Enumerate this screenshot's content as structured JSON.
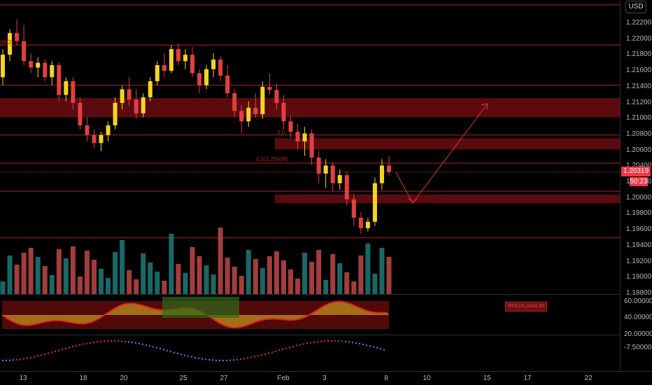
{
  "price_scale": {
    "currency": "USD",
    "ticks": [
      "1.22200",
      "1.22000",
      "1.21800",
      "1.21600",
      "1.21400",
      "1.21200",
      "1.21000",
      "1.20800",
      "1.20600",
      "1.20400",
      "1.20200",
      "1.20000",
      "1.19800",
      "1.19600",
      "1.19400",
      "1.19200",
      "1.19000",
      "1.18800"
    ],
    "current_price": "1.20319",
    "countdown": "50:23"
  },
  "time_axis": {
    "ticks": [
      "13",
      "18",
      "20",
      "25",
      "27",
      "Feb",
      "3",
      "8",
      "10",
      "15",
      "17",
      "22"
    ]
  },
  "indicator1": {
    "ticks": [
      "60.00000",
      "40.00000",
      "20.00000"
    ],
    "label": "RSI(14),close,50"
  },
  "indicator2": {
    "ticks": [
      "-7.50000"
    ]
  },
  "annotations": {
    "left_label": "(MO)",
    "fib_label": "0.5(1.20434)",
    "small_label": "0.5"
  },
  "colors": {
    "bullish": "#f5d422",
    "bearish": "#e04040",
    "zone": "#7a0f14",
    "level_line": "#b22222",
    "vol_up": "#1f7a77",
    "vol_down": "#c04848"
  },
  "chart_data": {
    "type": "candlestick",
    "ylim": [
      1.1875,
      1.2245
    ],
    "x_tick_labels": [
      "13",
      "18",
      "20",
      "25",
      "27",
      "Feb",
      "3",
      "8",
      "10",
      "15",
      "17",
      "22"
    ],
    "candles": [
      [
        1.215,
        1.2185,
        1.214,
        1.2178
      ],
      [
        1.2178,
        1.221,
        1.217,
        1.2205
      ],
      [
        1.2205,
        1.2222,
        1.219,
        1.2195
      ],
      [
        1.2195,
        1.2215,
        1.2165,
        1.217
      ],
      [
        1.217,
        1.218,
        1.2155,
        1.2162
      ],
      [
        1.2162,
        1.2175,
        1.215,
        1.2168
      ],
      [
        1.2168,
        1.2172,
        1.2145,
        1.215
      ],
      [
        1.215,
        1.217,
        1.214,
        1.2165
      ],
      [
        1.2165,
        1.2168,
        1.212,
        1.2128
      ],
      [
        1.2128,
        1.215,
        1.212,
        1.2145
      ],
      [
        1.2145,
        1.215,
        1.211,
        1.2118
      ],
      [
        1.2118,
        1.2125,
        1.2085,
        1.209
      ],
      [
        1.209,
        1.21,
        1.207,
        1.2078
      ],
      [
        1.2078,
        1.2085,
        1.2062,
        1.2068
      ],
      [
        1.2068,
        1.2082,
        1.2058,
        1.2078
      ],
      [
        1.2078,
        1.2095,
        1.207,
        1.209
      ],
      [
        1.209,
        1.2125,
        1.2085,
        1.2118
      ],
      [
        1.2118,
        1.214,
        1.211,
        1.2135
      ],
      [
        1.2135,
        1.215,
        1.2115,
        1.2122
      ],
      [
        1.2122,
        1.2135,
        1.2098,
        1.2105
      ],
      [
        1.2105,
        1.213,
        1.21,
        1.2125
      ],
      [
        1.2125,
        1.215,
        1.212,
        1.2145
      ],
      [
        1.2145,
        1.217,
        1.214,
        1.2165
      ],
      [
        1.2165,
        1.218,
        1.215,
        1.2158
      ],
      [
        1.2158,
        1.219,
        1.2155,
        1.2185
      ],
      [
        1.2185,
        1.2192,
        1.2165,
        1.217
      ],
      [
        1.217,
        1.2185,
        1.216,
        1.2178
      ],
      [
        1.2178,
        1.2188,
        1.215,
        1.2155
      ],
      [
        1.2155,
        1.216,
        1.213,
        1.214
      ],
      [
        1.214,
        1.2165,
        1.2135,
        1.216
      ],
      [
        1.216,
        1.218,
        1.215,
        1.2172
      ],
      [
        1.2172,
        1.2176,
        1.2145,
        1.2152
      ],
      [
        1.2152,
        1.2165,
        1.2125,
        1.213
      ],
      [
        1.213,
        1.2135,
        1.21,
        1.2108
      ],
      [
        1.2108,
        1.2115,
        1.208,
        1.2095
      ],
      [
        1.2095,
        1.212,
        1.2088,
        1.2112
      ],
      [
        1.2112,
        1.213,
        1.21,
        1.2104
      ],
      [
        1.2104,
        1.2145,
        1.2098,
        1.2138
      ],
      [
        1.2138,
        1.2155,
        1.2128,
        1.2134
      ],
      [
        1.2134,
        1.2142,
        1.211,
        1.2118
      ],
      [
        1.2118,
        1.2128,
        1.2085,
        1.2095
      ],
      [
        1.2095,
        1.2102,
        1.2075,
        1.2082
      ],
      [
        1.2082,
        1.2092,
        1.206,
        1.207
      ],
      [
        1.207,
        1.2088,
        1.2052,
        1.208
      ],
      [
        1.208,
        1.2085,
        1.204,
        1.205
      ],
      [
        1.205,
        1.2058,
        1.2018,
        1.203
      ],
      [
        1.203,
        1.2048,
        1.2012,
        1.204
      ],
      [
        1.204,
        1.2044,
        1.2008,
        1.2018
      ],
      [
        1.2018,
        1.2035,
        1.201,
        1.2028
      ],
      [
        1.2028,
        1.2032,
        1.199,
        1.1998
      ],
      [
        1.1998,
        1.2005,
        1.1965,
        1.1975
      ],
      [
        1.1975,
        1.1982,
        1.1955,
        1.1962
      ],
      [
        1.1962,
        1.1975,
        1.1958,
        1.197
      ],
      [
        1.197,
        1.2025,
        1.1965,
        1.2018
      ],
      [
        1.2018,
        1.2048,
        1.201,
        1.204
      ],
      [
        1.204,
        1.2052,
        1.2028,
        1.2032
      ]
    ],
    "volume_up_down": "per candle",
    "horizontal_levels": [
      1.224,
      1.219,
      1.214,
      1.2078,
      1.2043,
      1.2008,
      1.195
    ],
    "zones": [
      [
        1.21,
        1.2124
      ],
      [
        1.206,
        1.2074
      ],
      [
        1.1993,
        1.2004
      ]
    ],
    "projection_path": [
      [
        1.203,
        "x0"
      ],
      [
        1.1995,
        "x1"
      ],
      [
        1.2115,
        "x2"
      ]
    ]
  }
}
